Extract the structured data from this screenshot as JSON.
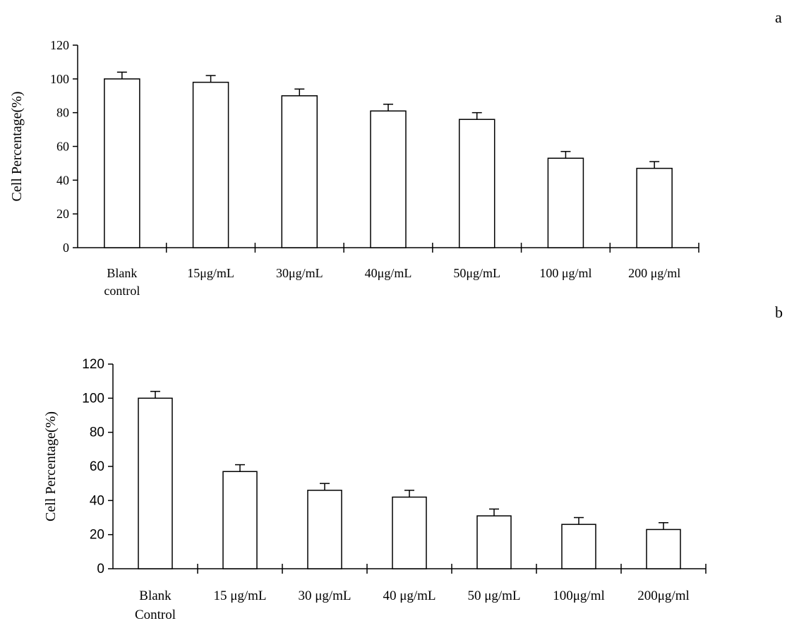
{
  "panel_labels": [
    "a",
    "b"
  ],
  "chart_data": [
    {
      "type": "bar",
      "panel": "a",
      "ylabel": "Cell Percentage(%)",
      "ylim": [
        0,
        120
      ],
      "yticks": [
        "0",
        "20",
        "40",
        "60",
        "80",
        "100",
        "120"
      ],
      "categories": [
        [
          "Blank",
          "control"
        ],
        [
          "15μg/mL"
        ],
        [
          "30μg/mL"
        ],
        [
          "40μg/mL"
        ],
        [
          "50μg/mL"
        ],
        [
          "100 μg/ml"
        ],
        [
          "200 μg/ml"
        ]
      ],
      "values": [
        100,
        98,
        90,
        81,
        76,
        53,
        47
      ],
      "errors": [
        4,
        4,
        4,
        4,
        4,
        4,
        4
      ]
    },
    {
      "type": "bar",
      "panel": "b",
      "ylabel": "Cell Percentage(%)",
      "ylim": [
        0,
        120
      ],
      "yticks": [
        "0",
        "20",
        "40",
        "60",
        "80",
        "100",
        "120"
      ],
      "categories": [
        [
          "Blank",
          "Control"
        ],
        [
          "15 μg/mL"
        ],
        [
          "30 μg/mL"
        ],
        [
          "40 μg/mL"
        ],
        [
          "50 μg/mL"
        ],
        [
          "100μg/ml"
        ],
        [
          "200μg/ml"
        ]
      ],
      "values": [
        100,
        57,
        46,
        42,
        31,
        26,
        23
      ],
      "errors": [
        4,
        4,
        4,
        4,
        4,
        4,
        4
      ]
    }
  ]
}
